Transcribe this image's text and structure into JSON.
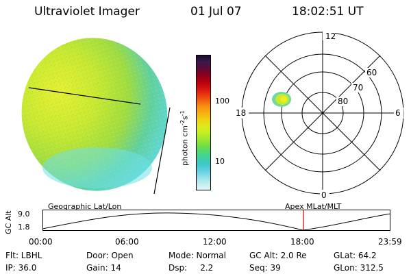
{
  "header": {
    "title": "Ultraviolet Imager",
    "date": "01 Jul 07",
    "time": "18:02:51 UT"
  },
  "colorbar": {
    "label": "photon cm",
    "label_sup": "-2",
    "label_mid": "s",
    "label_sup2": "-1",
    "ticks": [
      "100",
      "10"
    ],
    "colors": [
      "#1a0a2e",
      "#3a1a4a",
      "#5a0a3a",
      "#8a0020",
      "#b00010",
      "#d01010",
      "#e83010",
      "#f06010",
      "#f89010",
      "#f8b010",
      "#f0d010",
      "#e0e820",
      "#c8f020",
      "#a0e830",
      "#78e040",
      "#50d870",
      "#40d0a0",
      "#40c8c8",
      "#60d0e0",
      "#90e0e8",
      "#c0ecf0",
      "#e0f4f6"
    ]
  },
  "polar": {
    "labels_mlt": [
      "12",
      "18",
      "6",
      "0"
    ],
    "labels_lat": [
      "60",
      "70",
      "80"
    ]
  },
  "timeline": {
    "left_caption": "Geographic Lat/Lon",
    "right_caption": "Apex MLat/MLT",
    "y_axis_label": "GC Alt",
    "y_ticks": [
      "9.0",
      "1.8"
    ],
    "x_ticks": [
      "00:00",
      "06:00",
      "12:00",
      "18:00",
      "23:59"
    ]
  },
  "info": {
    "flt": "Flt: LBHL",
    "door": "Door: Open",
    "mode": "Mode: Normal",
    "gc_alt": "GC Alt: 2.0 Re",
    "glat": "GLat:  64.2",
    "ip": "IP: 36.0",
    "gain": "Gain: 14",
    "dsp": "Dsp:     2.2",
    "seq": "Seq: 39",
    "glon": "GLon: 312.5"
  },
  "colors": {
    "marker": "#cc0000"
  }
}
